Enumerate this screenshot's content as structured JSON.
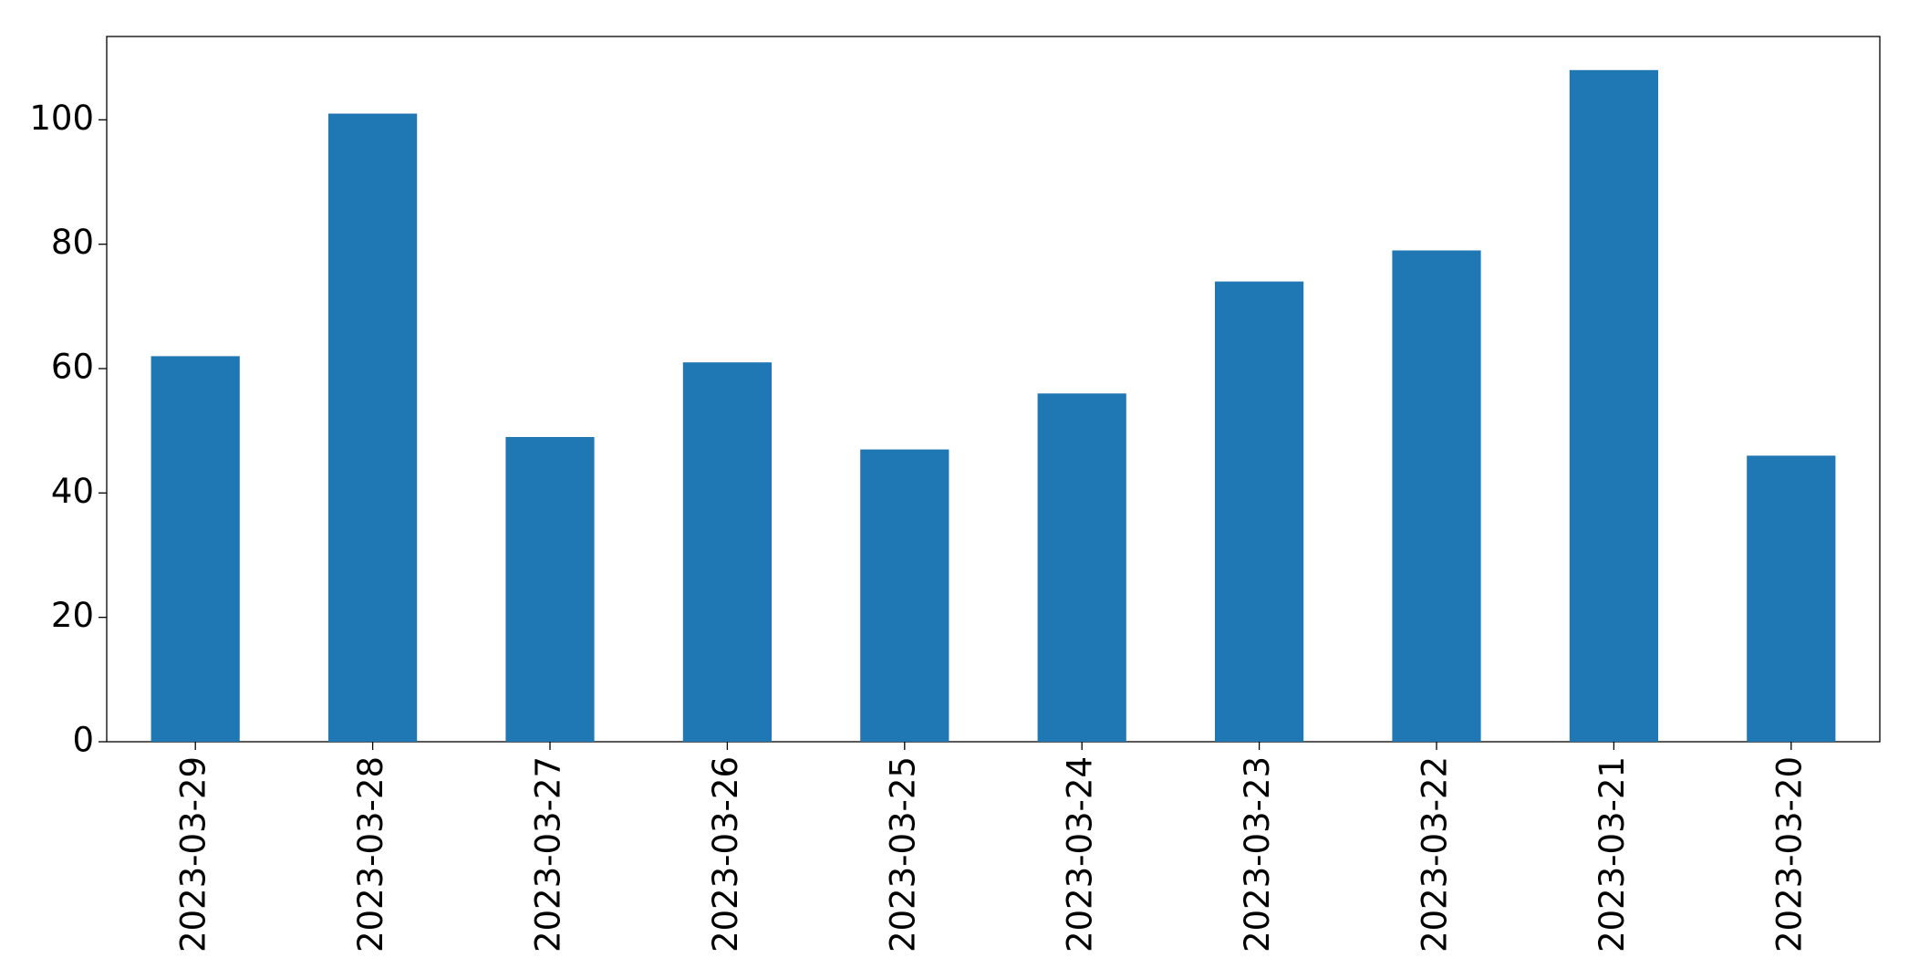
{
  "chart_data": {
    "type": "bar",
    "categories": [
      "2023-03-29",
      "2023-03-28",
      "2023-03-27",
      "2023-03-26",
      "2023-03-25",
      "2023-03-24",
      "2023-03-23",
      "2023-03-22",
      "2023-03-21",
      "2023-03-20"
    ],
    "values": [
      62,
      101,
      49,
      61,
      47,
      56,
      74,
      79,
      108,
      46
    ],
    "color": "#1f77b4",
    "ylim": [
      0,
      113.4
    ],
    "yticks": [
      0,
      20,
      40,
      60,
      80,
      100
    ],
    "grid": false
  }
}
